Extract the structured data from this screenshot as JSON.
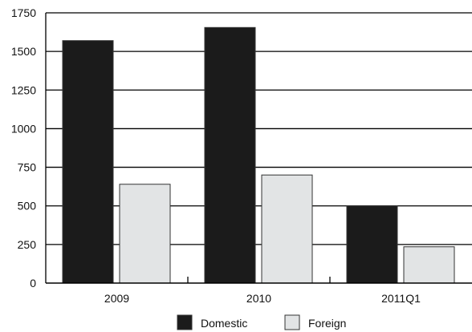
{
  "chart_data": {
    "type": "bar",
    "categories": [
      "2009",
      "2010",
      "2011Q1"
    ],
    "series": [
      {
        "name": "Domestic",
        "values": [
          1570,
          1655,
          500
        ],
        "color": "#1b1b1b"
      },
      {
        "name": "Foreign",
        "values": [
          640,
          700,
          235
        ],
        "color": "#e2e4e5"
      }
    ],
    "title": "",
    "xlabel": "",
    "ylabel": "",
    "ylim": [
      0,
      1750
    ],
    "yticks": [
      0,
      250,
      500,
      750,
      1000,
      1250,
      1500,
      1750
    ],
    "grid": true,
    "legend": "bottom"
  }
}
